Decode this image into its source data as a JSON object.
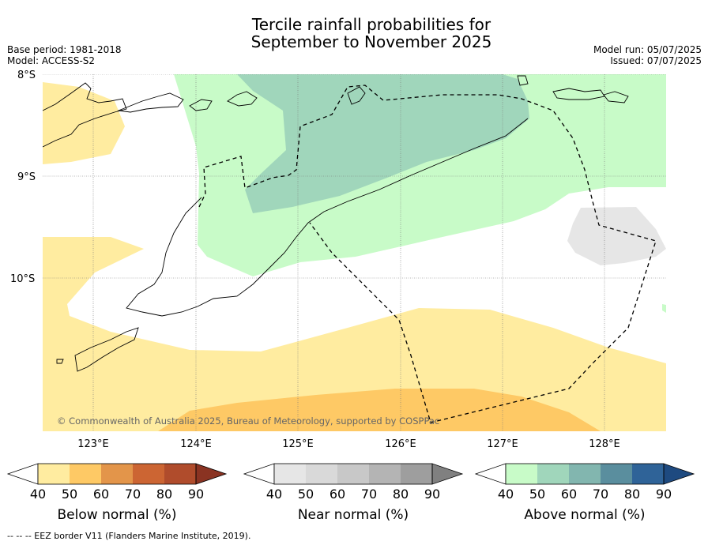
{
  "title": {
    "line1": "Tercile rainfall probabilities for",
    "line2": "September to November 2025"
  },
  "meta": {
    "base_period": "Base period: 1981-2018",
    "model": "Model: ACCESS-S2",
    "model_run": "Model run: 05/07/2025",
    "issued": "Issued: 07/07/2025"
  },
  "map": {
    "lat_labels": [
      "8°S",
      "9°S",
      "10°S"
    ],
    "lon_labels": [
      "123°E",
      "124°E",
      "125°E",
      "126°E",
      "127°E",
      "128°E"
    ],
    "copyright": "© Commonwealth of Australia 2025, Bureau of Meteorology, supported by COSPPac"
  },
  "colorbars": [
    {
      "name": "below",
      "label": "Below normal (%)",
      "ticks": [
        "40",
        "50",
        "60",
        "70",
        "80",
        "90"
      ],
      "colors": [
        "#ffffff",
        "#ffeca0",
        "#fec965",
        "#e3954a",
        "#cc6533",
        "#b04c2c",
        "#8a3322"
      ]
    },
    {
      "name": "near",
      "label": "Near normal (%)",
      "ticks": [
        "40",
        "50",
        "60",
        "70",
        "80",
        "90"
      ],
      "colors": [
        "#ffffff",
        "#e6e6e6",
        "#d9d9d9",
        "#c8c8c8",
        "#b4b4b4",
        "#9e9e9e",
        "#808080"
      ]
    },
    {
      "name": "above",
      "label": "Above normal (%)",
      "ticks": [
        "40",
        "50",
        "60",
        "70",
        "80",
        "90"
      ],
      "colors": [
        "#ffffff",
        "#c8fbc8",
        "#a0d6bb",
        "#82b6af",
        "#5a8e9e",
        "#2f6398",
        "#1e4a80"
      ]
    }
  ],
  "footnote": "--  --  -- EEZ border V11 (Flanders Marine Institute, 2019)."
}
